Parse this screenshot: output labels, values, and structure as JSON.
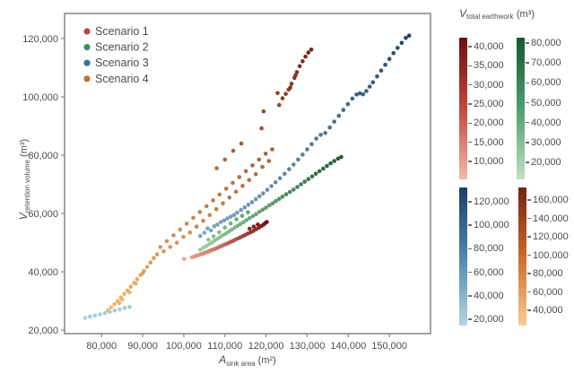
{
  "figure": {
    "background": "#ffffff",
    "frame_color": "#8c8c8c",
    "text_color": "#4d4d4d"
  },
  "chart_data": {
    "type": "scatter",
    "title": "",
    "grid": false,
    "legend_position": "top-left",
    "xlabel": {
      "symbol": "A",
      "sub": "sink area",
      "unit": "(m²)"
    },
    "ylabel": {
      "symbol": "V",
      "sub": "retention volume",
      "unit": "(m³)"
    },
    "xlim": [
      71000,
      160000
    ],
    "ylim": [
      18800,
      128600
    ],
    "x_tick_values": [
      80000,
      90000,
      100000,
      110000,
      120000,
      130000,
      140000,
      150000
    ],
    "x_tick_labels": [
      "80,000",
      "90,000",
      "100,000",
      "110,000",
      "120,000",
      "130,000",
      "140,000",
      "150,000"
    ],
    "y_tick_values": [
      20000,
      40000,
      60000,
      80000,
      100000,
      120000
    ],
    "y_tick_labels": [
      "20,000",
      "40,000",
      "60,000",
      "80,000",
      "100,000",
      "120,000"
    ],
    "series": [
      {
        "name": "Scenario 1",
        "legend_color": "#b5473f",
        "color_light": "#f0a28f",
        "color_dark": "#701010",
        "earthwork_range": [
          10000,
          40000
        ],
        "points": [
          [
            100100,
            44400
          ],
          [
            102000,
            45000
          ],
          [
            102500,
            45200
          ],
          [
            103000,
            45500
          ],
          [
            103400,
            45600
          ],
          [
            103900,
            45900
          ],
          [
            104300,
            46100
          ],
          [
            104800,
            46300
          ],
          [
            105200,
            46600
          ],
          [
            105700,
            46800
          ],
          [
            106100,
            47100
          ],
          [
            106600,
            47300
          ],
          [
            107000,
            47600
          ],
          [
            107500,
            47800
          ],
          [
            108000,
            48100
          ],
          [
            108400,
            48400
          ],
          [
            108900,
            48700
          ],
          [
            109400,
            49000
          ],
          [
            109900,
            49300
          ],
          [
            110400,
            49600
          ],
          [
            110900,
            49900
          ],
          [
            111400,
            50300
          ],
          [
            112000,
            50600
          ],
          [
            112500,
            51000
          ],
          [
            113100,
            51400
          ],
          [
            113700,
            51800
          ],
          [
            114300,
            52200
          ],
          [
            114900,
            52600
          ],
          [
            115500,
            53100
          ],
          [
            116000,
            54800
          ],
          [
            116200,
            53500
          ],
          [
            116900,
            54000
          ],
          [
            117000,
            55500
          ],
          [
            117600,
            54600
          ],
          [
            118000,
            56200
          ],
          [
            118300,
            55200
          ],
          [
            118900,
            55700
          ],
          [
            119400,
            56200
          ],
          [
            119800,
            56700
          ],
          [
            120200,
            57100
          ]
        ]
      },
      {
        "name": "Scenario 2",
        "legend_color": "#3f8f5f",
        "color_light": "#9ccfa4",
        "color_dark": "#1b5c33",
        "earthwork_range": [
          20000,
          80000
        ],
        "points": [
          [
            104000,
            47600
          ],
          [
            104700,
            48200
          ],
          [
            105400,
            48800
          ],
          [
            106100,
            49400
          ],
          [
            106800,
            50000
          ],
          [
            107500,
            50700
          ],
          [
            108200,
            51300
          ],
          [
            108900,
            52000
          ],
          [
            109600,
            52600
          ],
          [
            110300,
            53200
          ],
          [
            111000,
            53900
          ],
          [
            111700,
            54500
          ],
          [
            112400,
            55200
          ],
          [
            113100,
            55800
          ],
          [
            113800,
            56400
          ],
          [
            114500,
            57000
          ],
          [
            115200,
            57700
          ],
          [
            116000,
            58400
          ],
          [
            116800,
            59100
          ],
          [
            117600,
            59800
          ],
          [
            118400,
            60600
          ],
          [
            119200,
            61300
          ],
          [
            120000,
            62000
          ],
          [
            120800,
            62800
          ],
          [
            121600,
            63500
          ],
          [
            122400,
            64300
          ],
          [
            123200,
            65000
          ],
          [
            124000,
            65800
          ],
          [
            124900,
            66600
          ],
          [
            125800,
            67400
          ],
          [
            126700,
            68200
          ],
          [
            127600,
            69100
          ],
          [
            128500,
            70000
          ],
          [
            129400,
            70900
          ],
          [
            130300,
            71800
          ],
          [
            131200,
            72700
          ],
          [
            132100,
            73600
          ],
          [
            133000,
            74500
          ],
          [
            133900,
            75400
          ],
          [
            134800,
            76300
          ],
          [
            135700,
            77200
          ],
          [
            136600,
            78000
          ],
          [
            137500,
            78800
          ],
          [
            138300,
            79400
          ],
          [
            106000,
            51000
          ],
          [
            107200,
            52200
          ],
          [
            108600,
            53600
          ],
          [
            110000,
            55200
          ],
          [
            111400,
            56600
          ],
          [
            112800,
            58000
          ],
          [
            114200,
            59200
          ],
          [
            115600,
            60400
          ]
        ]
      },
      {
        "name": "Scenario 3",
        "legend_color": "#39729e",
        "color_light": "#a8cfe0",
        "color_dark": "#1e456b",
        "earthwork_range": [
          20000,
          120000
        ],
        "points": [
          [
            76000,
            24200
          ],
          [
            77200,
            24600
          ],
          [
            78400,
            25000
          ],
          [
            79600,
            25400
          ],
          [
            80800,
            25800
          ],
          [
            82000,
            26300
          ],
          [
            83200,
            26700
          ],
          [
            84400,
            27100
          ],
          [
            85600,
            27600
          ],
          [
            86800,
            28000
          ],
          [
            104000,
            52300
          ],
          [
            105000,
            53400
          ],
          [
            105800,
            54900
          ],
          [
            106600,
            54200
          ],
          [
            107400,
            55600
          ],
          [
            108200,
            56200
          ],
          [
            109000,
            57100
          ],
          [
            109800,
            57600
          ],
          [
            110600,
            58300
          ],
          [
            111400,
            58900
          ],
          [
            112200,
            59500
          ],
          [
            113000,
            60300
          ],
          [
            113900,
            61200
          ],
          [
            114800,
            62100
          ],
          [
            115700,
            63000
          ],
          [
            116600,
            63900
          ],
          [
            117500,
            64900
          ],
          [
            118400,
            65900
          ],
          [
            119300,
            66900
          ],
          [
            120300,
            68100
          ],
          [
            121300,
            69400
          ],
          [
            122300,
            70700
          ],
          [
            123400,
            72100
          ],
          [
            124500,
            73600
          ],
          [
            125600,
            75200
          ],
          [
            126700,
            76800
          ],
          [
            127800,
            78500
          ],
          [
            128900,
            80200
          ],
          [
            130000,
            82000
          ],
          [
            131100,
            83800
          ],
          [
            132200,
            85700
          ],
          [
            133300,
            87000
          ],
          [
            134400,
            87600
          ],
          [
            135500,
            89500
          ],
          [
            136600,
            91500
          ],
          [
            137700,
            93500
          ],
          [
            138800,
            95500
          ],
          [
            139900,
            97500
          ],
          [
            141000,
            99400
          ],
          [
            142000,
            100800
          ],
          [
            142800,
            101200
          ],
          [
            143600,
            100900
          ],
          [
            144400,
            102000
          ],
          [
            145200,
            103500
          ],
          [
            146000,
            105000
          ],
          [
            147000,
            107000
          ],
          [
            148000,
            109000
          ],
          [
            149000,
            111000
          ],
          [
            150000,
            113000
          ],
          [
            151000,
            115000
          ],
          [
            152000,
            116800
          ],
          [
            153000,
            118500
          ],
          [
            154000,
            120200
          ],
          [
            154800,
            121000
          ]
        ]
      },
      {
        "name": "Scenario 4",
        "legend_color": "#c9702f",
        "color_light": "#f2bb70",
        "color_dark": "#73281a",
        "earthwork_range": [
          40000,
          160000
        ],
        "points": [
          [
            81500,
            26800
          ],
          [
            82300,
            27800
          ],
          [
            83100,
            28900
          ],
          [
            83900,
            30000
          ],
          [
            84300,
            29300
          ],
          [
            84700,
            31200
          ],
          [
            85000,
            30500
          ],
          [
            85500,
            32400
          ],
          [
            86300,
            33600
          ],
          [
            86800,
            33000
          ],
          [
            87100,
            34900
          ],
          [
            87900,
            36200
          ],
          [
            88300,
            36000
          ],
          [
            88700,
            37500
          ],
          [
            89500,
            38900
          ],
          [
            90000,
            39500
          ],
          [
            90300,
            40300
          ],
          [
            91100,
            41700
          ],
          [
            91900,
            43200
          ],
          [
            92700,
            44700
          ],
          [
            93500,
            46000
          ],
          [
            94300,
            48500
          ],
          [
            95100,
            47000
          ],
          [
            95900,
            50500
          ],
          [
            96700,
            48500
          ],
          [
            97500,
            52500
          ],
          [
            98300,
            50000
          ],
          [
            99100,
            54500
          ],
          [
            99900,
            52000
          ],
          [
            100700,
            56500
          ],
          [
            101500,
            53500
          ],
          [
            102300,
            58500
          ],
          [
            103100,
            55500
          ],
          [
            103900,
            60500
          ],
          [
            104700,
            57500
          ],
          [
            105500,
            62500
          ],
          [
            106300,
            59500
          ],
          [
            107100,
            64500
          ],
          [
            107900,
            61500
          ],
          [
            108700,
            66500
          ],
          [
            109500,
            63500
          ],
          [
            110300,
            68500
          ],
          [
            111100,
            65500
          ],
          [
            111900,
            70500
          ],
          [
            112700,
            67500
          ],
          [
            113500,
            72500
          ],
          [
            114300,
            69500
          ],
          [
            115100,
            74500
          ],
          [
            115900,
            71500
          ],
          [
            116700,
            76500
          ],
          [
            117500,
            73500
          ],
          [
            118300,
            78500
          ],
          [
            119100,
            76000
          ],
          [
            119900,
            80500
          ],
          [
            120700,
            78000
          ],
          [
            121500,
            82000
          ],
          [
            108000,
            75500
          ],
          [
            110000,
            78500
          ],
          [
            112000,
            81500
          ],
          [
            114000,
            84000
          ],
          [
            118900,
            89200
          ],
          [
            119400,
            95000
          ],
          [
            122800,
            101300
          ],
          [
            123200,
            97200
          ],
          [
            124000,
            99500
          ],
          [
            124800,
            101000
          ],
          [
            125500,
            102500
          ],
          [
            125900,
            103200
          ],
          [
            126200,
            104500
          ],
          [
            126900,
            106500
          ],
          [
            127200,
            107400
          ],
          [
            127500,
            108500
          ],
          [
            128200,
            110500
          ],
          [
            128900,
            112200
          ],
          [
            129600,
            113800
          ],
          [
            130300,
            115200
          ],
          [
            131000,
            116200
          ]
        ]
      }
    ]
  },
  "legend": {
    "items": [
      {
        "label": "Scenario 1",
        "color": "#b5473f"
      },
      {
        "label": "Scenario 2",
        "color": "#3f8f5f"
      },
      {
        "label": "Scenario 3",
        "color": "#39729e"
      },
      {
        "label": "Scenario 4",
        "color": "#c9702f"
      }
    ]
  },
  "colorbar_panel": {
    "title": {
      "symbol": "V",
      "sub": "total earthwork",
      "unit": "(m³)"
    },
    "bars": [
      {
        "id": "red",
        "scenario": "Scenario 1",
        "gradient_top": "#6d1012",
        "gradient_mid": "#c4473d",
        "gradient_bottom": "#f3baa9",
        "ticks": [
          "40,000",
          "35,000",
          "30,000",
          "25,000",
          "20,000",
          "15,000",
          "10,000"
        ]
      },
      {
        "id": "green",
        "scenario": "Scenario 2",
        "gradient_top": "#17562f",
        "gradient_mid": "#4f9e6e",
        "gradient_bottom": "#c2e0c0",
        "ticks": [
          "80,000",
          "70,000",
          "60,000",
          "50,000",
          "40,000",
          "30,000",
          "20,000"
        ]
      },
      {
        "id": "blue",
        "scenario": "Scenario 3",
        "gradient_top": "#1c3f63",
        "gradient_mid": "#4e86b0",
        "gradient_bottom": "#b3d6e4",
        "ticks": [
          "120,000",
          "100,000",
          "80,000",
          "60,000",
          "40,000",
          "20,000"
        ]
      },
      {
        "id": "orange",
        "scenario": "Scenario 4",
        "gradient_top": "#6f2413",
        "gradient_mid": "#cc6a2b",
        "gradient_bottom": "#f7cf92",
        "ticks": [
          "160,000",
          "140,000",
          "120,000",
          "100,000",
          "80,000",
          "60,000",
          "40,000"
        ]
      }
    ]
  }
}
